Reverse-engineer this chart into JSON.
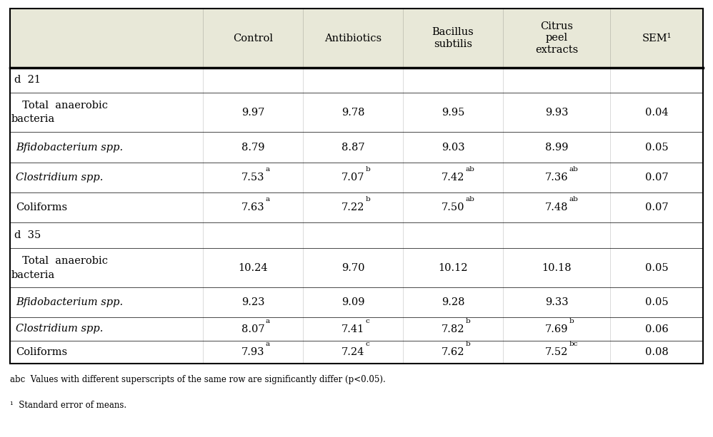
{
  "header_bg": "#e8e8d8",
  "table_bg": "#ffffff",
  "header_labels": [
    "",
    "Control",
    "Antibiotics",
    "Bacillus\nsubtilis",
    "Citrus\npeel\nextracts",
    "SEM¹"
  ],
  "sections": [
    {
      "section_label": "d  21",
      "rows": [
        {
          "label_lines": [
            "  Total  anaerobic",
            "bacteria"
          ],
          "italic": false,
          "indent": false,
          "values": [
            "9.97",
            "9.78",
            "9.95",
            "9.93",
            "0.04"
          ],
          "superscripts": [
            "",
            "",
            "",
            "",
            ""
          ]
        },
        {
          "label_lines": [
            "   Bfidobacterium spp."
          ],
          "italic": true,
          "indent": true,
          "values": [
            "8.79",
            "8.87",
            "9.03",
            "8.99",
            "0.05"
          ],
          "superscripts": [
            "",
            "",
            "",
            "",
            ""
          ]
        },
        {
          "label_lines": [
            "   Clostridium spp."
          ],
          "italic": true,
          "indent": true,
          "values": [
            "7.53",
            "7.07",
            "7.42",
            "7.36",
            "0.07"
          ],
          "superscripts": [
            "a",
            "b",
            "ab",
            "ab",
            ""
          ]
        },
        {
          "label_lines": [
            "   Coliforms"
          ],
          "italic": false,
          "indent": true,
          "values": [
            "7.63",
            "7.22",
            "7.50",
            "7.48",
            "0.07"
          ],
          "superscripts": [
            "a",
            "b",
            "ab",
            "ab",
            ""
          ]
        }
      ]
    },
    {
      "section_label": "d  35",
      "rows": [
        {
          "label_lines": [
            "  Total  anaerobic",
            "bacteria"
          ],
          "italic": false,
          "indent": false,
          "values": [
            "10.24",
            "9.70",
            "10.12",
            "10.18",
            "0.05"
          ],
          "superscripts": [
            "",
            "",
            "",
            "",
            ""
          ]
        },
        {
          "label_lines": [
            "   Bfidobacterium spp."
          ],
          "italic": true,
          "indent": true,
          "values": [
            "9.23",
            "9.09",
            "9.28",
            "9.33",
            "0.05"
          ],
          "superscripts": [
            "",
            "",
            "",
            "",
            ""
          ]
        },
        {
          "label_lines": [
            "   Clostridium spp."
          ],
          "italic": true,
          "indent": true,
          "values": [
            "8.07",
            "7.41",
            "7.82",
            "7.69",
            "0.06"
          ],
          "superscripts": [
            "a",
            "c",
            "b",
            "b",
            ""
          ]
        },
        {
          "label_lines": [
            "   Coliforms"
          ],
          "italic": false,
          "indent": true,
          "values": [
            "7.93",
            "7.24",
            "7.62",
            "7.52",
            "0.08"
          ],
          "superscripts": [
            "a",
            "c",
            "b",
            "bc",
            ""
          ]
        }
      ]
    }
  ],
  "footnote1": "abc  Values with different superscripts of the same row are significantly differ (p<0.05).",
  "footnote2": "¹  Standard error of means.",
  "figsize": [
    9.98,
    6.13
  ],
  "dpi": 100
}
